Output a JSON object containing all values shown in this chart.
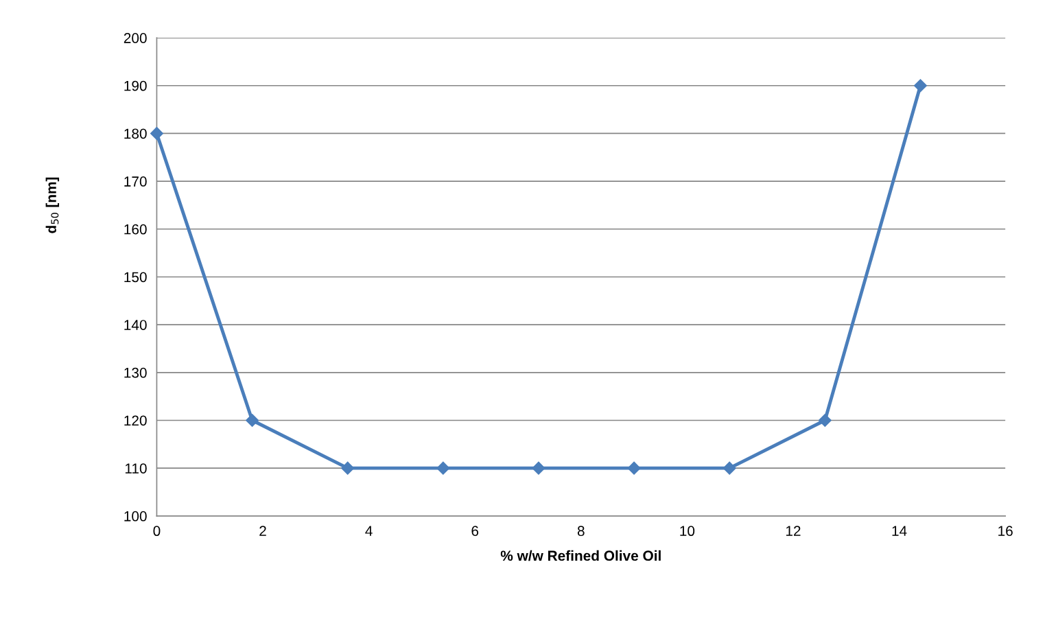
{
  "chart_data": {
    "type": "line",
    "xlabel": "% w/w Refined Olive Oil",
    "ylabel": "d$_{50}$ [nm]",
    "x": [
      0,
      1.8,
      3.6,
      5.4,
      7.2,
      9,
      10.8,
      12.6,
      14.4
    ],
    "series": [
      {
        "color": "#4a7ebb",
        "values": [
          180,
          120,
          110,
          110,
          110,
          110,
          110,
          120,
          190
        ]
      }
    ],
    "xlim": [
      0,
      16
    ],
    "xticks": [
      0,
      2,
      4,
      6,
      8,
      10,
      12,
      14,
      16
    ],
    "ylim": [
      100,
      200
    ],
    "yticks": [
      100,
      110,
      120,
      130,
      140,
      150,
      160,
      170,
      180,
      190,
      200
    ],
    "grid": "y",
    "marker": "diamond",
    "line_style": "solid"
  }
}
